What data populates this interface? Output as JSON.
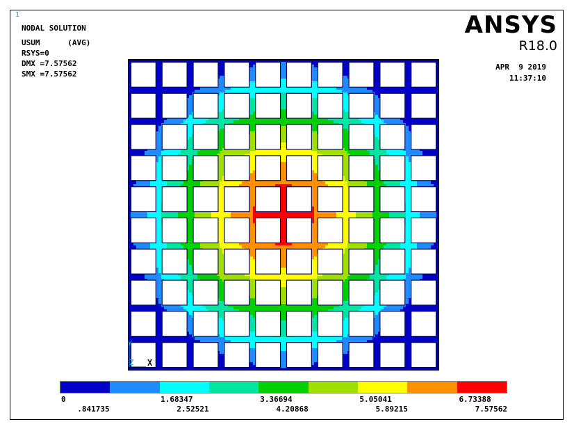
{
  "window_number": "1",
  "info": {
    "title": "NODAL SOLUTION",
    "item": "USUM      (AVG)",
    "rsys": "RSYS=0",
    "dmx": "DMX =7.57562",
    "smx": "SMX =7.57562"
  },
  "logo": {
    "brand": "ANSYS",
    "release": "R18.0"
  },
  "datetime": {
    "date": "APR  9 2019",
    "time": "11:37:10"
  },
  "triad": {
    "x": "X",
    "y": "Y",
    "z": "Z"
  },
  "model": {
    "cells": 10,
    "max_value": 7.57562,
    "center": [
      0.5,
      0.5
    ]
  },
  "legend": {
    "colors": [
      "#0000c8",
      "#1e8cff",
      "#00ffff",
      "#00e6a0",
      "#00d000",
      "#a0e000",
      "#ffff00",
      "#ff9000",
      "#ff0000"
    ],
    "labels_top": [
      "0",
      "1.68347",
      "3.36694",
      "5.05041",
      "6.73388"
    ],
    "labels_bottom": [
      ".841735",
      "2.52521",
      "4.20868",
      "5.89215",
      "7.57562"
    ]
  }
}
